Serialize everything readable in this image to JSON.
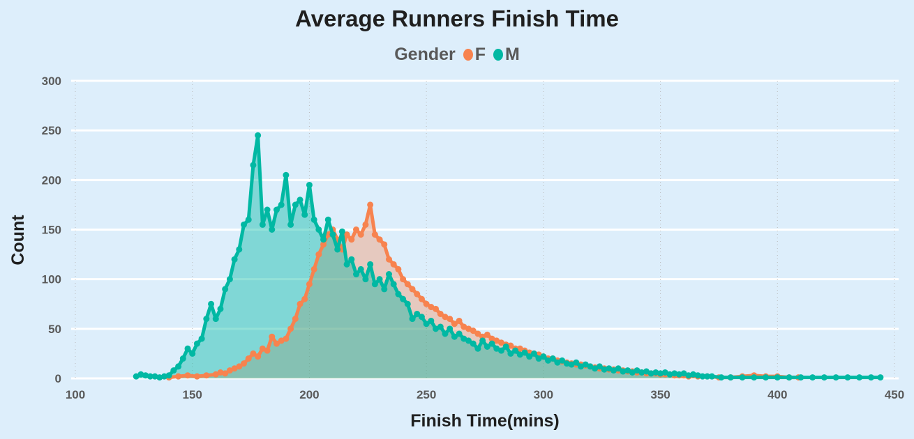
{
  "chart_data": {
    "type": "area",
    "title": "Average Runners Finish Time",
    "xlabel": "Finish Time(mins)",
    "ylabel": "Count",
    "xlim": [
      100,
      450
    ],
    "ylim": [
      0,
      300
    ],
    "xticks": [
      100,
      150,
      200,
      250,
      300,
      350,
      400,
      450
    ],
    "yticks": [
      0,
      50,
      100,
      150,
      200,
      250,
      300
    ],
    "grid": true,
    "legend": {
      "title": "Gender",
      "placement": "top-center"
    },
    "series": [
      {
        "name": "F",
        "color": "#f7834f",
        "x": [
          140,
          144,
          148,
          152,
          156,
          160,
          162,
          164,
          166,
          168,
          170,
          172,
          174,
          176,
          178,
          180,
          182,
          184,
          186,
          188,
          190,
          192,
          194,
          196,
          198,
          200,
          202,
          204,
          206,
          208,
          210,
          212,
          214,
          216,
          218,
          220,
          222,
          224,
          226,
          228,
          230,
          232,
          234,
          236,
          238,
          240,
          242,
          244,
          246,
          248,
          250,
          252,
          254,
          256,
          258,
          260,
          262,
          264,
          266,
          268,
          270,
          272,
          274,
          276,
          278,
          280,
          282,
          284,
          286,
          288,
          290,
          292,
          294,
          296,
          298,
          300,
          302,
          304,
          306,
          308,
          310,
          312,
          314,
          316,
          318,
          320,
          322,
          324,
          326,
          328,
          330,
          332,
          334,
          336,
          338,
          340,
          342,
          344,
          346,
          348,
          350,
          352,
          354,
          356,
          358,
          360,
          362,
          366,
          370,
          375,
          380,
          385,
          390,
          395,
          400,
          405,
          409
        ],
        "y": [
          1,
          2,
          3,
          2,
          3,
          4,
          6,
          5,
          8,
          10,
          12,
          15,
          20,
          25,
          22,
          30,
          28,
          42,
          35,
          38,
          40,
          50,
          60,
          75,
          80,
          95,
          110,
          125,
          135,
          145,
          150,
          140,
          130,
          145,
          140,
          150,
          145,
          155,
          175,
          145,
          140,
          135,
          120,
          115,
          110,
          100,
          95,
          90,
          85,
          80,
          75,
          72,
          70,
          65,
          62,
          60,
          55,
          58,
          52,
          50,
          48,
          45,
          42,
          44,
          40,
          38,
          36,
          34,
          33,
          30,
          30,
          28,
          26,
          25,
          24,
          22,
          20,
          20,
          18,
          17,
          16,
          15,
          14,
          14,
          13,
          12,
          11,
          10,
          10,
          9,
          9,
          8,
          8,
          7,
          7,
          6,
          6,
          5,
          5,
          5,
          4,
          4,
          4,
          3,
          3,
          3,
          2,
          2,
          2,
          1,
          1,
          2,
          3,
          2,
          2,
          1,
          1
        ]
      },
      {
        "name": "M",
        "color": "#01b8a3",
        "x": [
          126,
          128,
          130,
          132,
          134,
          136,
          138,
          140,
          142,
          144,
          146,
          148,
          150,
          152,
          154,
          156,
          158,
          160,
          162,
          164,
          166,
          168,
          170,
          172,
          174,
          176,
          178,
          180,
          182,
          184,
          186,
          188,
          190,
          192,
          194,
          196,
          198,
          200,
          202,
          204,
          206,
          208,
          210,
          212,
          214,
          216,
          218,
          220,
          222,
          224,
          226,
          228,
          230,
          232,
          234,
          236,
          238,
          240,
          242,
          244,
          246,
          248,
          250,
          252,
          254,
          256,
          258,
          260,
          262,
          264,
          266,
          268,
          270,
          272,
          274,
          276,
          278,
          280,
          282,
          284,
          286,
          288,
          290,
          292,
          294,
          296,
          298,
          300,
          302,
          304,
          306,
          308,
          310,
          312,
          314,
          316,
          318,
          320,
          322,
          324,
          326,
          328,
          330,
          332,
          334,
          336,
          338,
          340,
          342,
          344,
          346,
          348,
          350,
          352,
          354,
          356,
          358,
          360,
          362,
          364,
          366,
          368,
          370,
          372,
          376,
          380,
          385,
          390,
          395,
          400,
          405,
          410,
          415,
          420,
          425,
          430,
          435,
          440,
          444
        ],
        "y": [
          2,
          4,
          3,
          2,
          2,
          1,
          2,
          3,
          8,
          12,
          20,
          30,
          25,
          35,
          40,
          60,
          75,
          60,
          70,
          90,
          100,
          120,
          130,
          155,
          160,
          215,
          245,
          155,
          170,
          150,
          170,
          175,
          205,
          155,
          175,
          180,
          165,
          195,
          160,
          150,
          140,
          160,
          145,
          130,
          148,
          115,
          120,
          105,
          110,
          100,
          115,
          95,
          100,
          90,
          105,
          95,
          85,
          80,
          75,
          60,
          65,
          62,
          55,
          58,
          50,
          52,
          45,
          50,
          42,
          45,
          40,
          38,
          35,
          30,
          38,
          32,
          35,
          30,
          28,
          32,
          25,
          28,
          24,
          26,
          22,
          25,
          20,
          22,
          18,
          20,
          16,
          18,
          15,
          14,
          16,
          12,
          14,
          12,
          10,
          12,
          9,
          10,
          8,
          10,
          7,
          8,
          6,
          8,
          6,
          7,
          5,
          6,
          5,
          6,
          4,
          5,
          4,
          5,
          3,
          4,
          3,
          2,
          2,
          2,
          1,
          1,
          1,
          1,
          1,
          1,
          1,
          1,
          1,
          1,
          1,
          1,
          1,
          1,
          1
        ]
      }
    ]
  }
}
